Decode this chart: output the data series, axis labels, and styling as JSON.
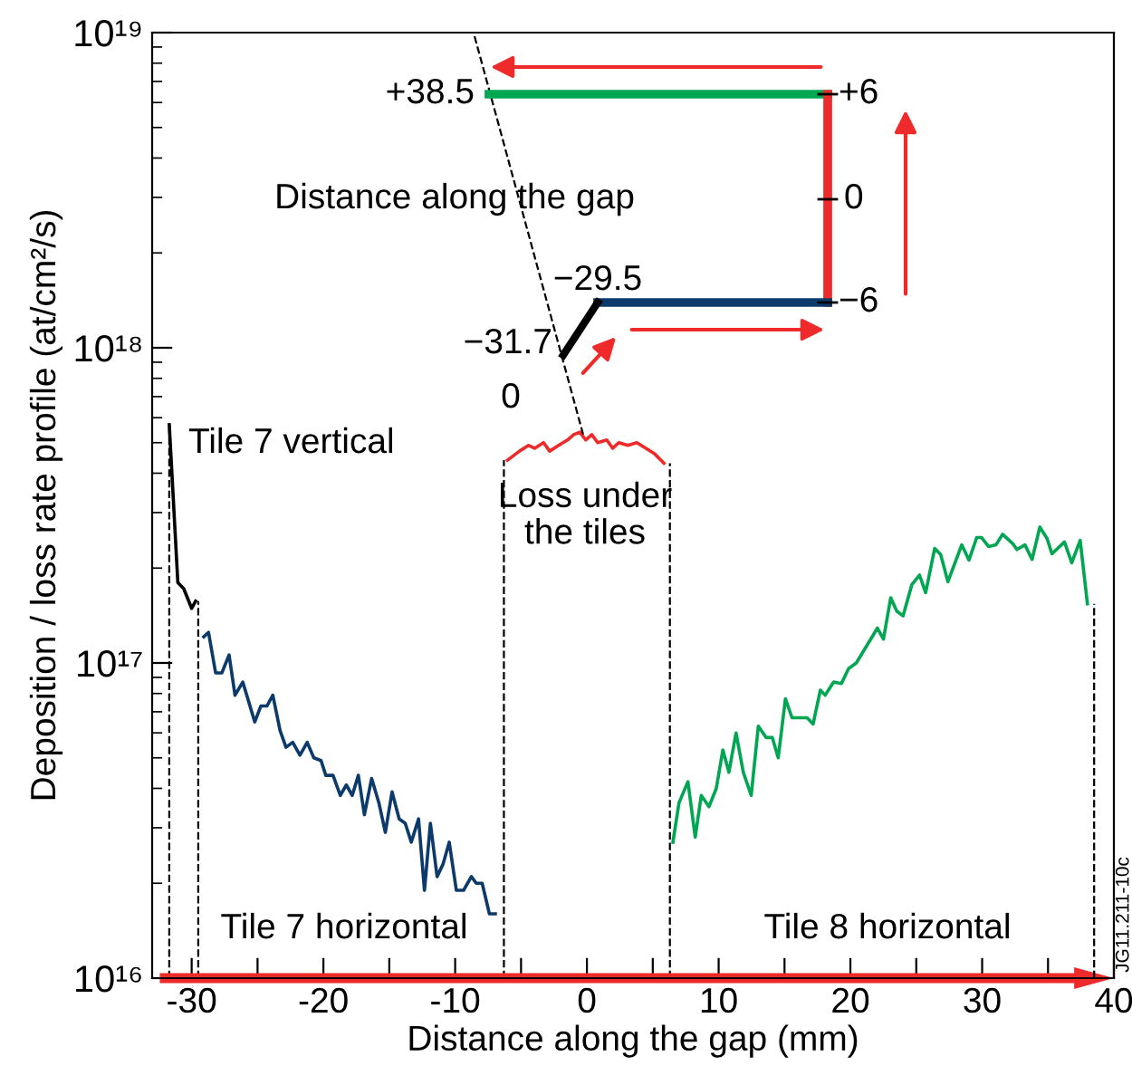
{
  "chart_data": {
    "type": "line",
    "xlabel": "Distance along the gap (mm)",
    "ylabel": "Deposition / loss rate profile (at/cm²/s)",
    "log": "y",
    "xlim": [
      -33,
      40
    ],
    "xticks": [
      -30,
      {
        "value": -25,
        "label": null
      },
      -20,
      {
        "value": -15,
        "label": null
      },
      -10,
      {
        "value": -5,
        "label": null
      },
      0,
      {
        "value": 5,
        "label": null
      },
      10,
      {
        "value": 15,
        "label": null
      },
      20,
      {
        "value": 25,
        "label": null
      },
      30,
      {
        "value": 35,
        "label": null
      },
      40
    ],
    "ylim": [
      1e+16,
      1e+19
    ],
    "yticks": [
      {
        "value": 1e+16,
        "label": "10¹⁶"
      },
      {
        "value": 1e+17,
        "label": "10¹⁷"
      },
      {
        "value": 1e+18,
        "label": "10¹⁸"
      },
      {
        "value": 1e+19,
        "label": "10¹⁹"
      }
    ],
    "grid": false,
    "legend": false,
    "line_style": "solid",
    "series": [
      {
        "name": "Tile 7 vertical",
        "color": "#000000",
        "x": [
          -31.7,
          -31.05,
          -30.6,
          -30.0,
          -29.7
        ],
        "values": [
          5.7e+17,
          1.8e+17,
          1.72e+17,
          1.49e+17,
          1.57e+17
        ]
      },
      {
        "name": "Tile 7 horizontal",
        "color": "#0b3a6b",
        "x": [
          -29.08,
          -28.72,
          -28.18,
          -27.71,
          -27.16,
          -26.71,
          -26.12,
          -25.21,
          -24.75,
          -24.29,
          -23.84,
          -23.29,
          -22.84,
          -22.33,
          -21.78,
          -21.23,
          -20.73,
          -20.18,
          -19.82,
          -19.27,
          -18.72,
          -18.26,
          -17.81,
          -17.35,
          -16.89,
          -16.34,
          -15.79,
          -15.3,
          -14.79,
          -14.25,
          -13.79,
          -13.33,
          -12.78,
          -12.33,
          -11.88,
          -11.37,
          -10.92,
          -10.45,
          -9.91,
          -9.36,
          -8.77,
          -8.4,
          -7.95,
          -7.4,
          -6.95
        ],
        "values": [
          1.21e+17,
          1.25e+17,
          9.3e+16,
          9.3e+16,
          1.06e+17,
          7.9e+16,
          8.7e+16,
          6.5e+16,
          7.3e+16,
          7.3e+16,
          7.9e+16,
          6.1e+16,
          5.4e+16,
          5.6e+16,
          5.1e+16,
          5.6e+16,
          5e+16,
          4.9e+16,
          4.4e+16,
          4.4e+16,
          3.8e+16,
          4.1e+16,
          3.8e+16,
          4.4e+16,
          3.3e+16,
          4.3e+16,
          3.6e+16,
          2.9e+16,
          3.9e+16,
          3.2e+16,
          3.1e+16,
          2.7e+16,
          3.2e+16,
          1.9e+16,
          3.1e+16,
          2.1e+16,
          2.3e+16,
          2.7e+16,
          1.9e+16,
          1.9e+16,
          2.1e+16,
          2e+16,
          2e+16,
          1.6e+16,
          1.6e+16
        ]
      },
      {
        "name": "Loss under\nthe tiles",
        "color": "#ee2a2a",
        "x": [
          -6.03,
          -5.12,
          -4.43,
          -3.97,
          -3.29,
          -2.83,
          -2.15,
          -1.47,
          -1.0,
          -0.55,
          -0.09,
          0.37,
          0.82,
          1.51,
          1.96,
          2.42,
          3.11,
          3.79,
          4.48,
          5.16,
          5.85
        ],
        "values": [
          4.4e+17,
          4.7e+17,
          4.9e+17,
          4.8e+17,
          5e+17,
          4.7e+17,
          4.9e+17,
          5.1e+17,
          5.3e+17,
          5.4e+17,
          5.1e+17,
          5.3e+17,
          5e+17,
          5.1e+17,
          4.8e+17,
          5e+17,
          4.9e+17,
          5e+17,
          4.8e+17,
          4.6e+17,
          4.3e+17
        ]
      },
      {
        "name": "Tile 8 horizontal",
        "color": "#00a651",
        "x": [
          6.53,
          6.99,
          7.67,
          8.22,
          8.68,
          9.27,
          9.82,
          10.32,
          10.78,
          11.32,
          11.87,
          12.47,
          13.01,
          13.6,
          14.07,
          14.52,
          15.07,
          15.57,
          16.71,
          17.17,
          17.72,
          18.08,
          18.73,
          19.32,
          19.86,
          20.45,
          22.05,
          22.51,
          23.06,
          23.52,
          24.0,
          24.66,
          25.25,
          25.71,
          26.4,
          26.85,
          27.4,
          28.45,
          29.0,
          29.59,
          29.96,
          30.5,
          31.05,
          31.55,
          32.33,
          32.64,
          33.25,
          33.79,
          34.38,
          34.93,
          35.3,
          36.25,
          36.8,
          37.44,
          37.99
        ],
        "values": [
          2.7e+16,
          3.6e+16,
          4.2e+16,
          2.8e+16,
          3.8e+16,
          3.5e+16,
          4e+16,
          5.3e+16,
          4.5e+16,
          6e+16,
          4.5e+16,
          3.8e+16,
          6.3e+16,
          5.8e+16,
          5.8e+16,
          5e+16,
          7.7e+16,
          6.7e+16,
          6.7e+16,
          6.4e+16,
          8.2e+16,
          7.9e+16,
          8.7e+16,
          8.6e+16,
          9.6e+16,
          1e+17,
          1.29e+17,
          1.19e+17,
          1.61e+17,
          1.46e+17,
          1.41e+17,
          1.77e+17,
          1.9e+17,
          1.67e+17,
          2.31e+17,
          2.21e+17,
          1.81e+17,
          2.37e+17,
          2.12e+17,
          2.5e+17,
          2.5e+17,
          2.34e+17,
          2.37e+17,
          2.56e+17,
          2.39e+17,
          2.29e+17,
          2.37e+17,
          2.13e+17,
          2.7e+17,
          2.48e+17,
          2.22e+17,
          2.42e+17,
          2.08e+17,
          2.45e+17,
          1.54e+17
        ]
      }
    ],
    "ref_lines": [
      {
        "axis": "x",
        "value": -31.7,
        "line_style": "dashed",
        "color": "#000000"
      },
      {
        "axis": "x",
        "value": -29.5,
        "line_style": "dashed",
        "color": "#000000"
      },
      {
        "axis": "x",
        "value": -6.3,
        "line_style": "dashed",
        "color": "#000000"
      },
      {
        "axis": "x",
        "value": 6.3,
        "line_style": "dashed",
        "color": "#000000"
      },
      {
        "axis": "x",
        "value": 38.5,
        "line_style": "dashed",
        "color": "#000000"
      },
      {
        "axis": "y",
        "value": 1e+16,
        "line_style": "solid",
        "color": "#ee2a2a"
      }
    ],
    "annotations": [
      "+38.5",
      "Distance along the gap",
      "−29.5",
      "−31.7",
      "0",
      "+6",
      "0",
      "−6",
      "JG11.211-10c"
    ]
  }
}
